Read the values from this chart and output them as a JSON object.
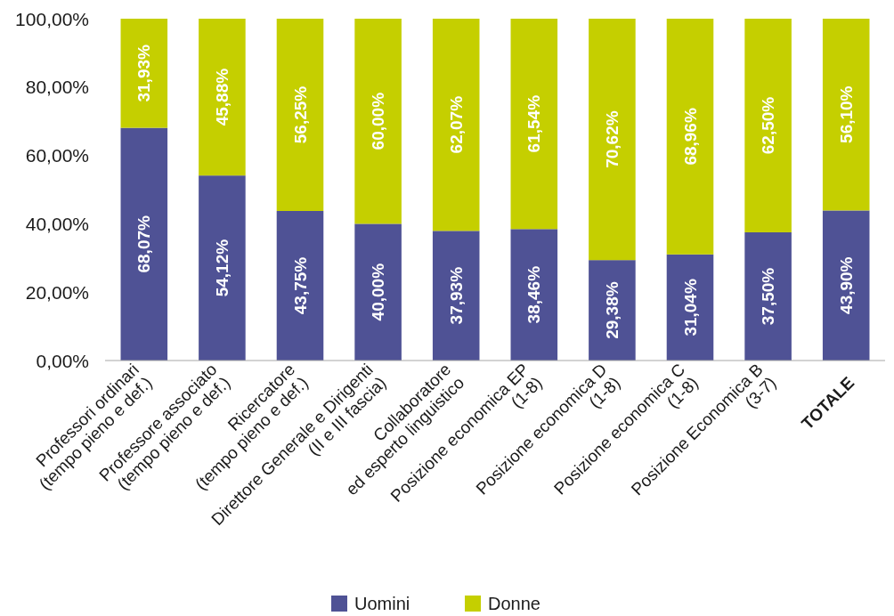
{
  "chart_data": {
    "type": "bar",
    "stacked": true,
    "categories": [
      "Professori ordinari\n(tempo pieno e def.)",
      "Professore associato\n(tempo pieno e def.)",
      "Ricercatore\n(tempo pieno e def.)",
      "Direttore Generale e Dirigenti\n(II e III fascia)",
      "Collaboratore\ned esperto linguistico",
      "Posizione economica EP\n(1-8)",
      "Posizione economica D\n(1-8)",
      "Posizione economica C\n(1-8)",
      "Posizione Economica B\n(3-7)",
      "TOTALE"
    ],
    "series": [
      {
        "name": "Uomini",
        "color": "#4f5295",
        "values": [
          68.07,
          54.12,
          43.75,
          40.0,
          37.93,
          38.46,
          29.38,
          31.04,
          37.5,
          43.9
        ],
        "value_labels": [
          "68,07%",
          "54,12%",
          "43,75%",
          "40,00%",
          "37,93%",
          "38,46%",
          "29,38%",
          "31,04%",
          "37,50%",
          "43,90%"
        ]
      },
      {
        "name": "Donne",
        "color": "#c5cf00",
        "values": [
          31.93,
          45.88,
          56.25,
          60.0,
          62.07,
          61.54,
          70.62,
          68.96,
          62.5,
          56.1
        ],
        "value_labels": [
          "31,93%",
          "45,88%",
          "56,25%",
          "60,00%",
          "62,07%",
          "61,54%",
          "70,62%",
          "68,96%",
          "62,50%",
          "56,10%"
        ]
      }
    ],
    "ylim": [
      0,
      100
    ],
    "yticks": [
      {
        "value": 0,
        "label": "0,00%"
      },
      {
        "value": 20,
        "label": "20,00%"
      },
      {
        "value": 40,
        "label": "40,00%"
      },
      {
        "value": 60,
        "label": "60,00%"
      },
      {
        "value": 80,
        "label": "80,00%"
      },
      {
        "value": 100,
        "label": "100,00%"
      }
    ],
    "grid": false,
    "legend": "bottom"
  }
}
